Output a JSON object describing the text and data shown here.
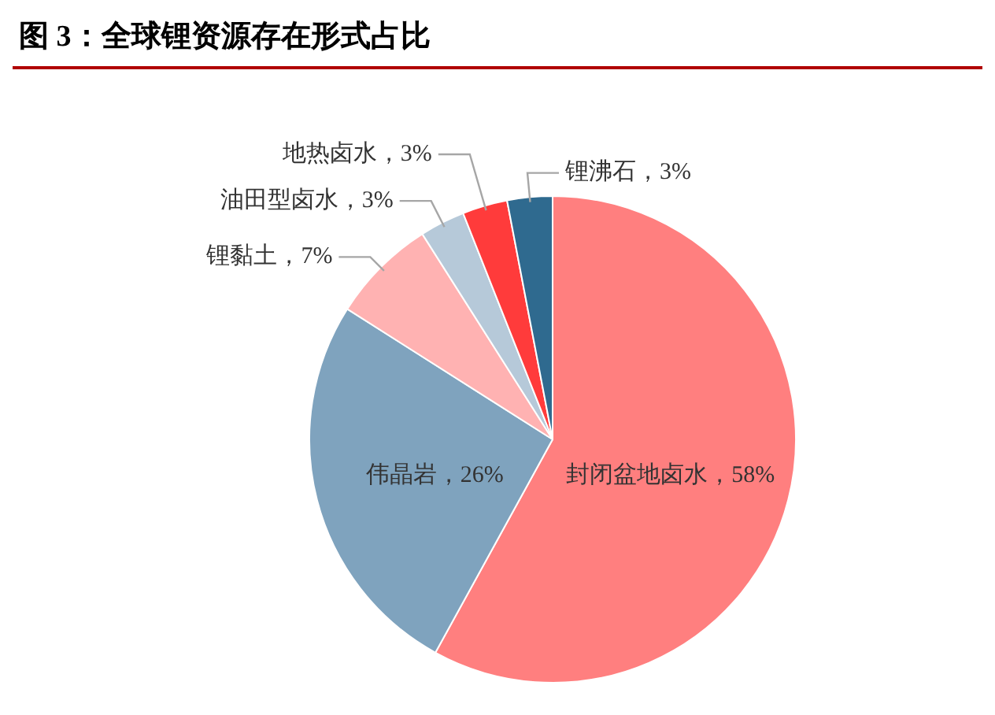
{
  "chart_data": {
    "type": "pie",
    "title": "图 3：全球锂资源存在形式占比",
    "categories": [
      "封闭盆地卤水",
      "伟晶岩",
      "锂黏土",
      "油田型卤水",
      "地热卤水",
      "锂沸石"
    ],
    "values": [
      58,
      26,
      7,
      3,
      3,
      3
    ],
    "value_labels": [
      "58%",
      "26%",
      "7%",
      "3%",
      "3%",
      "3%"
    ],
    "colors": [
      "#ff7f7f",
      "#7fa3be",
      "#ffb2b2",
      "#b6c9d9",
      "#ff3b3b",
      "#2f6a8f"
    ],
    "legend": false
  }
}
